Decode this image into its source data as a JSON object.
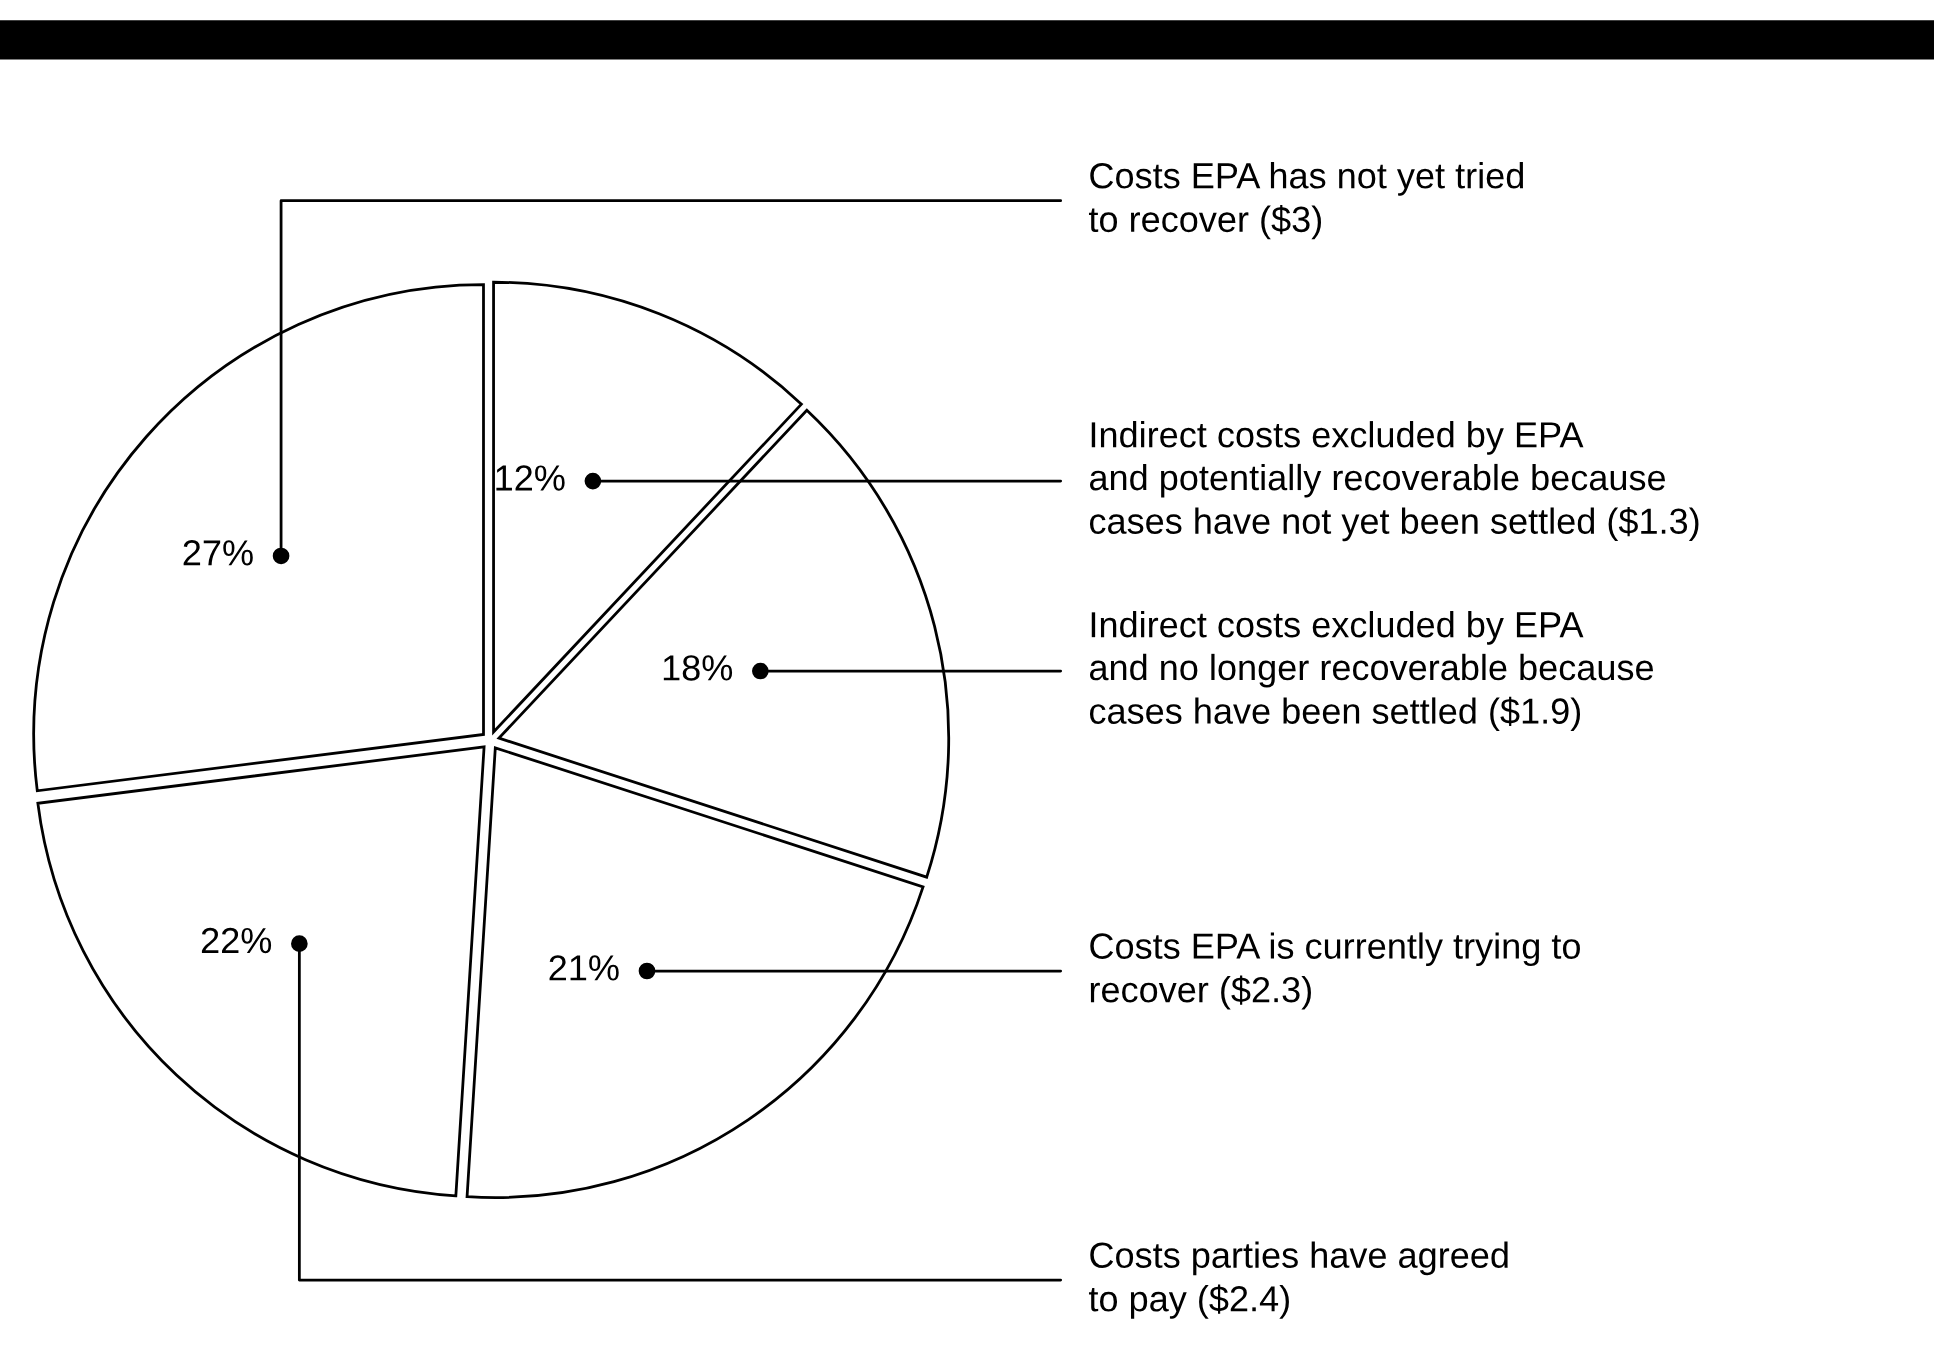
{
  "chart_data": {
    "type": "pie",
    "categories": [
      "Indirect costs excluded by EPA\nand potentially recoverable because\ncases have not yet been settled ($1.3)",
      "Indirect costs excluded by EPA\nand no longer recoverable because\ncases have been settled ($1.9)",
      "Costs EPA is currently trying to\nrecover ($2.3)",
      "Costs parties have agreed\nto pay ($2.4)",
      "Costs EPA has not yet tried\nto recover ($3)"
    ],
    "values": [
      12,
      18,
      21,
      22,
      27
    ],
    "value_labels": [
      "12%",
      "18%",
      "21%",
      "22%",
      "27%"
    ],
    "colors": [
      "#ffffff",
      "#ffffff",
      "#ffffff",
      "#ffffff",
      "#ffffff"
    ]
  }
}
